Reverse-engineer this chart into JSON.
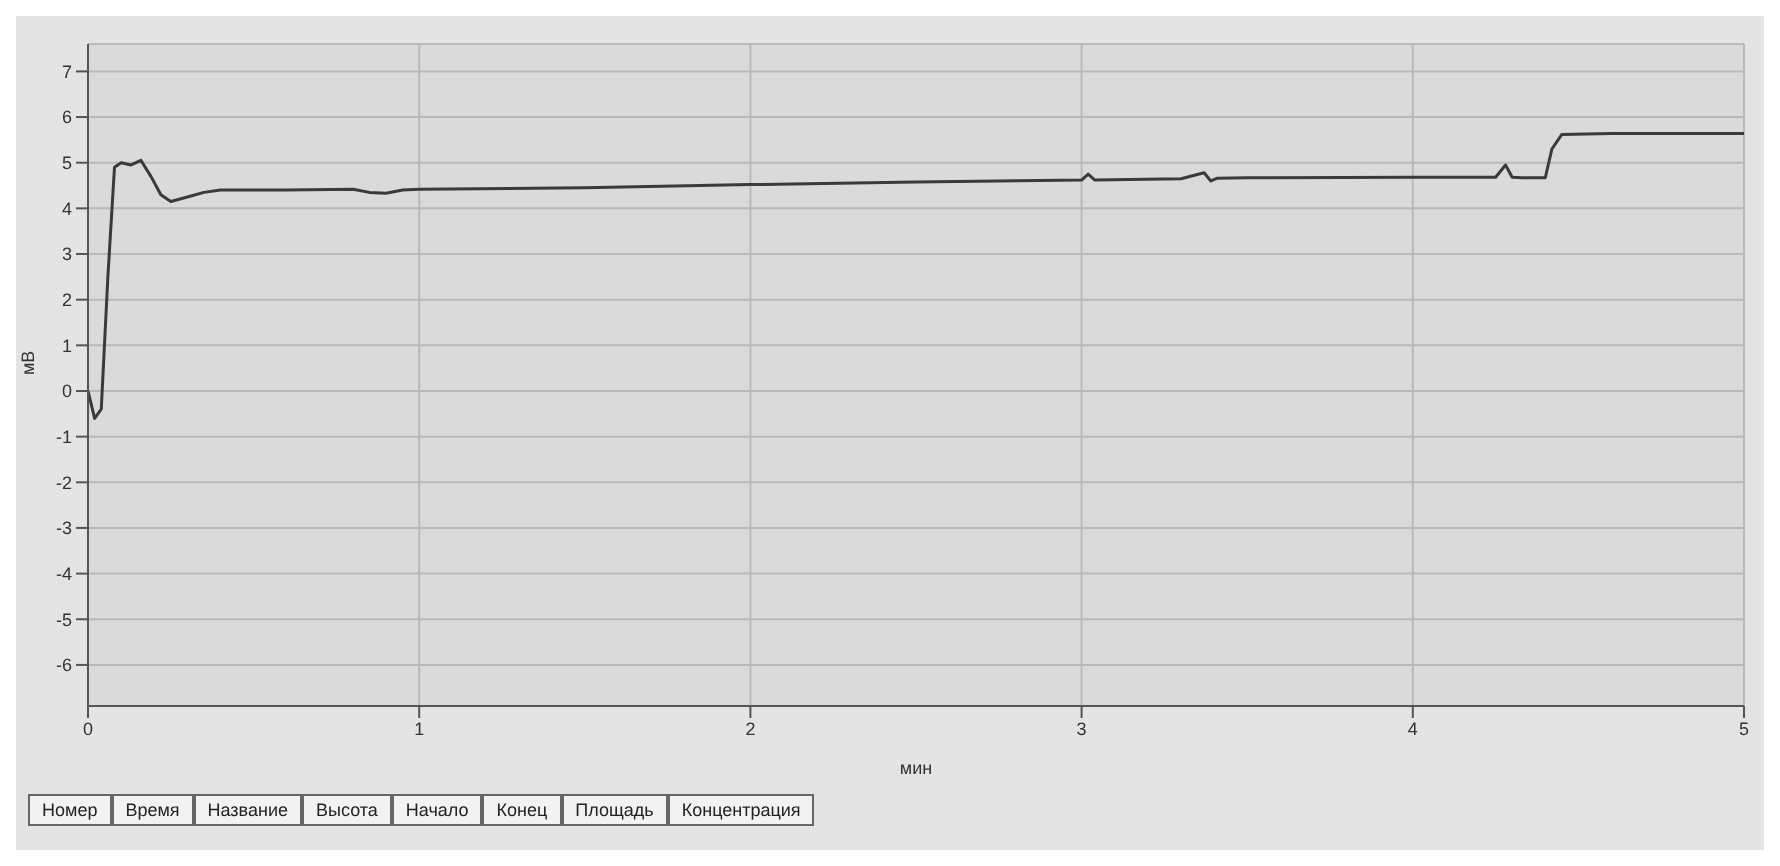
{
  "chart_data": {
    "type": "line",
    "xlabel": "мин",
    "ylabel": "мВ",
    "xlim": [
      0,
      5
    ],
    "xticks": [
      0,
      1,
      2,
      3,
      4,
      5
    ],
    "ylim": [
      -6.9,
      7.6
    ],
    "yticks": [
      -6,
      -5,
      -4,
      -3,
      -2,
      -1,
      0,
      1,
      2,
      3,
      4,
      5,
      6,
      7
    ],
    "grid": true,
    "legend": false,
    "marker": "none",
    "line_style": "solid",
    "series": [
      {
        "color": "#3a3a3a",
        "x": [
          0,
          0.01,
          0.02,
          0.04,
          0.06,
          0.08,
          0.1,
          0.13,
          0.16,
          0.19,
          0.22,
          0.25,
          0.3,
          0.35,
          0.4,
          0.6,
          0.8,
          0.85,
          0.9,
          0.95,
          1.0,
          1.5,
          2.0,
          2.5,
          3.0,
          3.02,
          3.04,
          3.3,
          3.37,
          3.39,
          3.41,
          3.5,
          4.0,
          4.25,
          4.28,
          4.3,
          4.33,
          4.4,
          4.42,
          4.45,
          4.6,
          5.0
        ],
        "values": [
          0,
          -0.3,
          -0.6,
          -0.4,
          2.5,
          4.9,
          5.0,
          4.95,
          5.05,
          4.7,
          4.3,
          4.15,
          4.25,
          4.35,
          4.4,
          4.4,
          4.42,
          4.35,
          4.33,
          4.4,
          4.42,
          4.45,
          4.52,
          4.58,
          4.62,
          4.75,
          4.62,
          4.65,
          4.78,
          4.6,
          4.66,
          4.67,
          4.68,
          4.68,
          4.95,
          4.68,
          4.67,
          4.67,
          5.3,
          5.62,
          5.64,
          5.64
        ]
      }
    ],
    "annotations": [
      "Номер",
      "Время",
      "Название",
      "Высота",
      "Начало",
      "Конец",
      "Площадь",
      "Концентрация"
    ]
  }
}
